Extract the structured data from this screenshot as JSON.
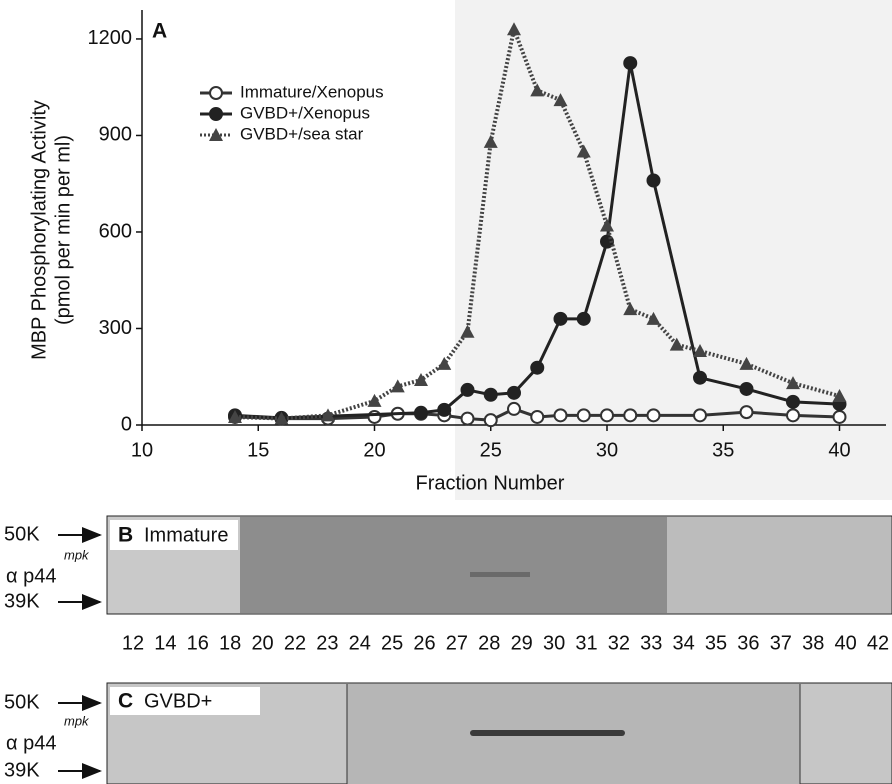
{
  "chart_data": {
    "type": "line",
    "title": "A",
    "ylabel": "MBP Phosphorylating Activity",
    "ylabel_sub": "(pmol per min per ml)",
    "xlabel": "Fraction Number",
    "xlim": [
      10,
      42
    ],
    "ylim": [
      0,
      1290
    ],
    "xticks": [
      10,
      15,
      20,
      25,
      30,
      35,
      40
    ],
    "yticks": [
      0,
      300,
      600,
      900,
      1200
    ],
    "legend": "upper-left",
    "series": [
      {
        "name": "Immature/Xenopus",
        "color": "#333333",
        "marker": "open-circle",
        "line_style": "solid",
        "x": [
          14,
          16,
          18,
          20,
          21,
          22,
          23,
          24,
          25,
          26,
          27,
          28,
          29,
          30,
          31,
          32,
          34,
          36,
          38,
          40
        ],
        "values": [
          25,
          20,
          20,
          25,
          35,
          35,
          30,
          20,
          15,
          50,
          25,
          30,
          30,
          30,
          30,
          30,
          30,
          40,
          30,
          25
        ]
      },
      {
        "name": "GVBD+/Xenopus",
        "color": "#222222",
        "marker": "circle",
        "line_style": "solid",
        "x": [
          14,
          16,
          22,
          23,
          24,
          25,
          26,
          27,
          28,
          29,
          30,
          31,
          32,
          34,
          36,
          38,
          40
        ],
        "values": [
          30,
          22,
          38,
          47,
          109,
          94,
          100,
          178,
          330,
          330,
          570,
          1125,
          760,
          147,
          112,
          72,
          65
        ]
      },
      {
        "name": "GVBD+/sea star",
        "color": "#444444",
        "marker": "triangle",
        "line_style": "dotted",
        "x": [
          14,
          16,
          18,
          20,
          21,
          22,
          23,
          24,
          25,
          26,
          27,
          28,
          29,
          30,
          31,
          32,
          33,
          34,
          36,
          38,
          40
        ],
        "values": [
          25,
          20,
          30,
          75,
          120,
          140,
          190,
          290,
          880,
          1230,
          1040,
          1010,
          850,
          620,
          360,
          330,
          250,
          230,
          190,
          130,
          90
        ]
      }
    ]
  },
  "panels": [
    {
      "label": "B",
      "title": "Immature",
      "upper": "50K",
      "kinase": "mpk",
      "antibody": "α p44",
      "lower": "39K"
    },
    {
      "label": "C",
      "title": "GVBD+",
      "upper": "50K",
      "kinase": "mpk",
      "antibody": "α p44",
      "lower": "39K"
    }
  ],
  "fractions": [
    12,
    14,
    16,
    18,
    20,
    22,
    23,
    24,
    25,
    26,
    27,
    28,
    29,
    30,
    31,
    32,
    33,
    34,
    35,
    36,
    37,
    38,
    40,
    42
  ]
}
